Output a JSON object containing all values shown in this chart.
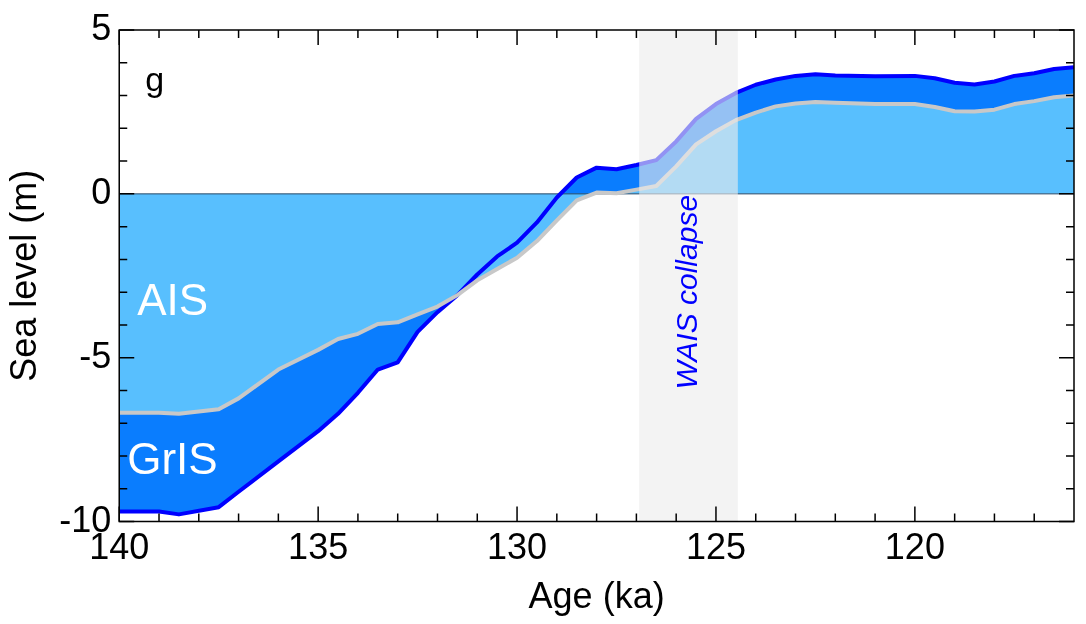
{
  "chart_data": {
    "type": "area",
    "xlabel": "Age (ka)",
    "ylabel": "Sea level (m)",
    "stacked": true,
    "x": [
      140,
      139,
      138.5,
      137.5,
      137,
      136,
      135,
      134.5,
      134,
      133.5,
      133,
      132.5,
      132,
      131.5,
      131,
      130.5,
      130,
      129.5,
      129,
      128.5,
      128,
      127.5,
      127,
      126.5,
      126,
      125.5,
      125,
      124.5,
      124,
      123.5,
      123,
      122.5,
      122,
      121,
      120,
      119.5,
      119,
      118.5,
      118,
      117.5,
      117,
      116.5,
      116
    ],
    "series": [
      {
        "name": "AIS",
        "color": "#58bffe",
        "values": [
          -6.68,
          -6.68,
          -6.71,
          -6.57,
          -6.24,
          -5.36,
          -4.76,
          -4.43,
          -4.27,
          -3.97,
          -3.92,
          -3.68,
          -3.44,
          -3.09,
          -2.64,
          -2.29,
          -1.95,
          -1.44,
          -0.81,
          -0.2,
          0.04,
          0.02,
          0.13,
          0.24,
          0.84,
          1.51,
          1.91,
          2.25,
          2.48,
          2.67,
          2.76,
          2.8,
          2.78,
          2.74,
          2.74,
          2.65,
          2.52,
          2.51,
          2.57,
          2.74,
          2.83,
          2.95,
          3.0
        ]
      },
      {
        "name": "GrIS",
        "color": "#0a7dfe",
        "values": [
          -3.01,
          -3.01,
          -3.07,
          -2.99,
          -2.85,
          -2.8,
          -2.48,
          -2.28,
          -1.8,
          -1.39,
          -1.22,
          -0.53,
          -0.17,
          0,
          0.18,
          0.38,
          0.46,
          0.57,
          0.7,
          0.7,
          0.76,
          0.73,
          0.75,
          0.79,
          0.76,
          0.78,
          0.83,
          0.83,
          0.85,
          0.82,
          0.84,
          0.85,
          0.83,
          0.85,
          0.86,
          0.88,
          0.87,
          0.83,
          0.86,
          0.86,
          0.85,
          0.86,
          0.86
        ]
      }
    ],
    "xlim": [
      140,
      116
    ],
    "ylim": [
      -10,
      5
    ],
    "xticks": [
      140,
      {
        "value": 139,
        "label": null
      },
      {
        "value": 138,
        "label": null
      },
      {
        "value": 137,
        "label": null
      },
      {
        "value": 136,
        "label": null
      },
      135,
      {
        "value": 134,
        "label": null
      },
      {
        "value": 133,
        "label": null
      },
      {
        "value": 132,
        "label": null
      },
      {
        "value": 131,
        "label": null
      },
      130,
      {
        "value": 129,
        "label": null
      },
      {
        "value": 128,
        "label": null
      },
      {
        "value": 127,
        "label": null
      },
      {
        "value": 126,
        "label": null
      },
      125,
      {
        "value": 124,
        "label": null
      },
      {
        "value": 123,
        "label": null
      },
      {
        "value": 122,
        "label": null
      },
      {
        "value": 121,
        "label": null
      },
      120,
      {
        "value": 119,
        "label": null
      },
      {
        "value": 118,
        "label": null
      },
      {
        "value": 117,
        "label": null
      }
    ],
    "yticks": [
      -10,
      {
        "value": -9,
        "label": null
      },
      {
        "value": -8,
        "label": null
      },
      {
        "value": -7,
        "label": null
      },
      {
        "value": -6,
        "label": null
      },
      -5,
      {
        "value": -4,
        "label": null
      },
      {
        "value": -3,
        "label": null
      },
      {
        "value": -2,
        "label": null
      },
      {
        "value": -1,
        "label": null
      },
      0,
      {
        "value": 1,
        "label": null
      },
      {
        "value": 2,
        "label": null
      },
      {
        "value": 3,
        "label": null
      },
      {
        "value": 4,
        "label": null
      },
      5
    ],
    "ref_lines": [
      {
        "axis": "y",
        "value": 0,
        "color": "#2a4a66"
      }
    ],
    "bands": [
      {
        "axis": "x",
        "from": 126.93,
        "to": 124.45,
        "label": "WAIS collapse",
        "color": "#ececec"
      }
    ],
    "annotations": [
      "g"
    ],
    "legend": false
  }
}
